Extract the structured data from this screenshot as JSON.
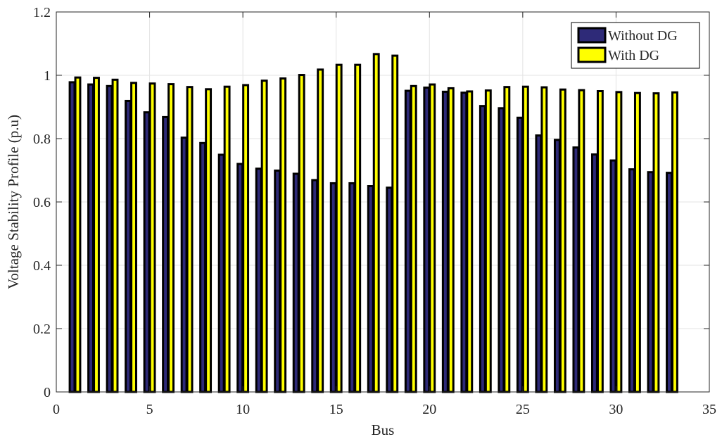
{
  "chart_data": {
    "type": "bar",
    "xlabel": "Bus",
    "ylabel": "Voltage Stability Profile (p.u)",
    "xlim": [
      0,
      35
    ],
    "ylim": [
      0,
      1.2
    ],
    "xticks": [
      0,
      5,
      10,
      15,
      20,
      25,
      30,
      35
    ],
    "xtick_labels": [
      "0",
      "5",
      "10",
      "15",
      "20",
      "25",
      "30",
      "35"
    ],
    "yticks": [
      0,
      0.2,
      0.4,
      0.6,
      0.8,
      1,
      1.2
    ],
    "ytick_labels": [
      "0",
      "0.2",
      "0.4",
      "0.6",
      "0.8",
      "1",
      "1.2"
    ],
    "grid": true,
    "legend_position": "top-right",
    "categories": [
      1,
      2,
      3,
      4,
      5,
      6,
      7,
      8,
      9,
      10,
      11,
      12,
      13,
      14,
      15,
      16,
      17,
      18,
      19,
      20,
      21,
      22,
      23,
      24,
      25,
      26,
      27,
      28,
      29,
      30,
      31,
      32,
      33
    ],
    "series": [
      {
        "name": "Without DG",
        "color": "#2e2a78",
        "values": [
          0.978,
          0.971,
          0.966,
          0.919,
          0.883,
          0.868,
          0.803,
          0.786,
          0.749,
          0.72,
          0.705,
          0.699,
          0.689,
          0.669,
          0.659,
          0.659,
          0.65,
          0.645,
          0.951,
          0.961,
          0.948,
          0.945,
          0.903,
          0.896,
          0.866,
          0.81,
          0.796,
          0.772,
          0.75,
          0.731,
          0.703,
          0.694,
          0.692
        ]
      },
      {
        "name": "With DG",
        "color": "#ffff00",
        "values": [
          0.993,
          0.992,
          0.986,
          0.976,
          0.974,
          0.972,
          0.963,
          0.956,
          0.964,
          0.969,
          0.983,
          0.99,
          1.001,
          1.018,
          1.033,
          1.033,
          1.067,
          1.062,
          0.966,
          0.971,
          0.959,
          0.949,
          0.952,
          0.963,
          0.964,
          0.962,
          0.955,
          0.953,
          0.95,
          0.947,
          0.944,
          0.943,
          0.946
        ]
      }
    ]
  }
}
